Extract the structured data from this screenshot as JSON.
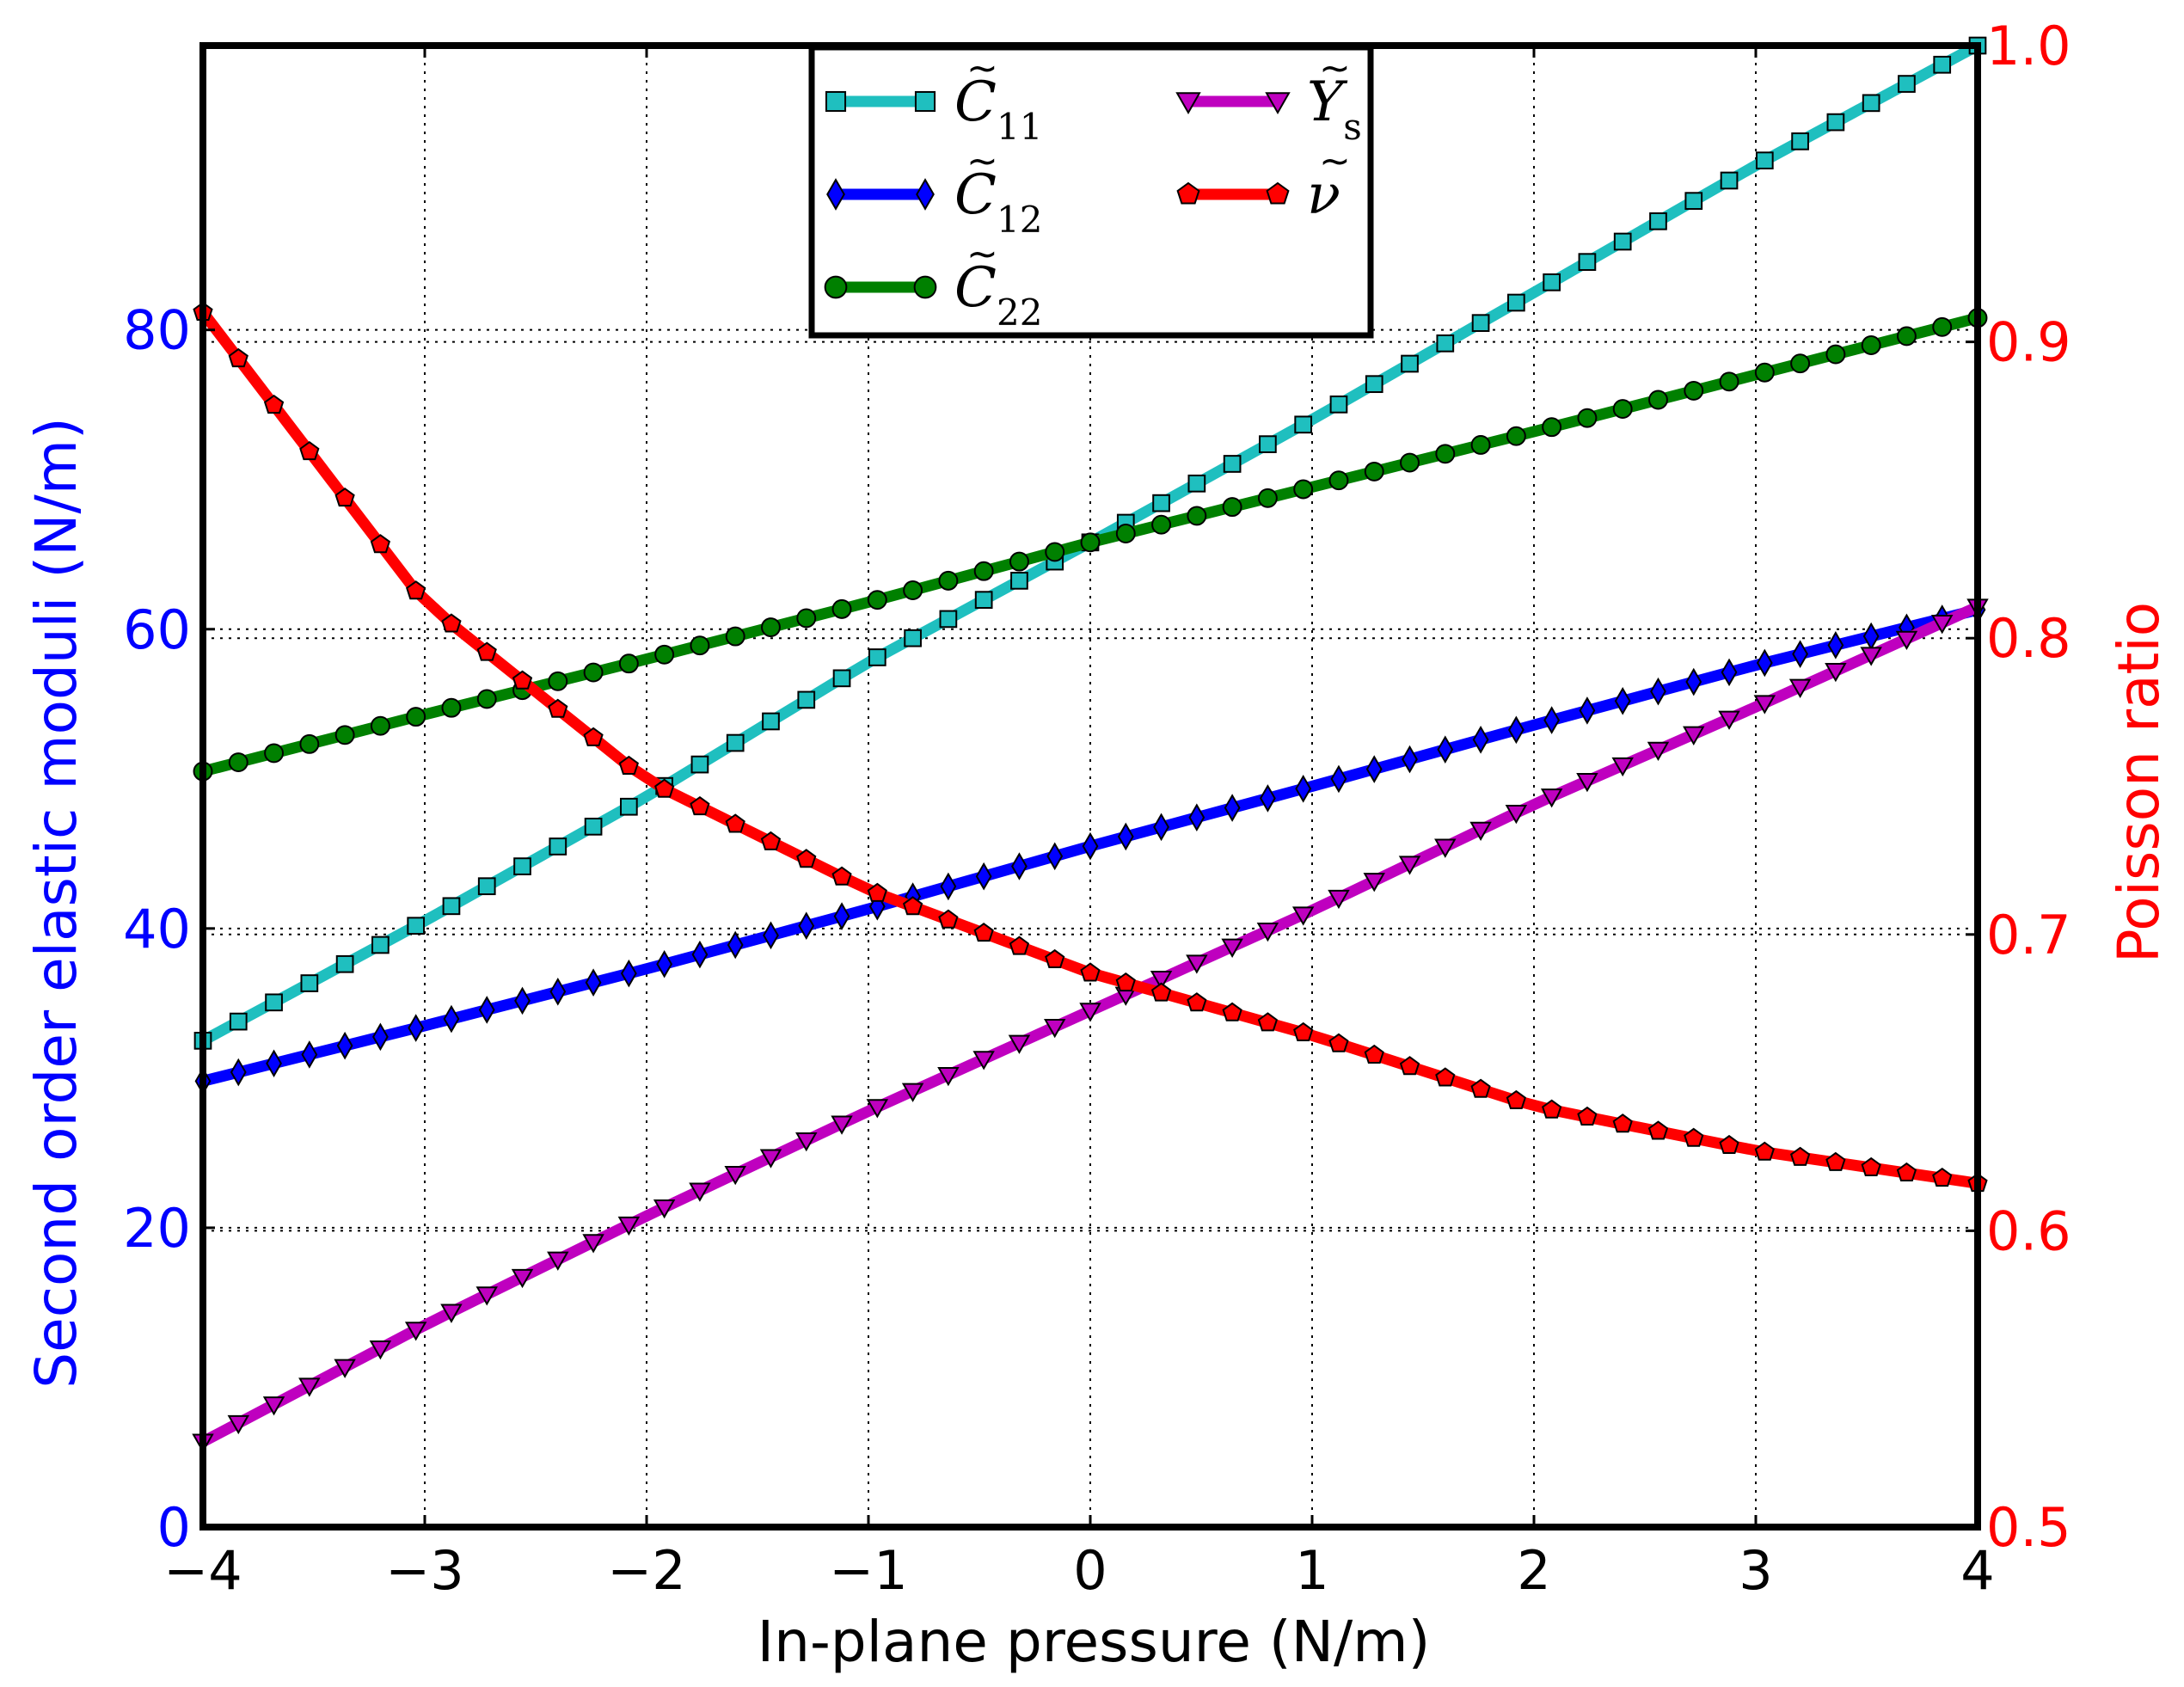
{
  "chart_data": {
    "type": "line",
    "title": "",
    "xlabel": "In-plane pressure (N/m)",
    "ylabel_left": "Second order elastic moduli (N/m)",
    "ylabel_right": "Poisson ratio",
    "xlim": [
      -4,
      4
    ],
    "ylim_left": [
      0,
      99
    ],
    "ylim_right": [
      0.5,
      1.0
    ],
    "grid": true,
    "legend_position": "top-center",
    "x_ticks": [
      -4,
      -3,
      -2,
      -1,
      0,
      1,
      2,
      3,
      4
    ],
    "x_tick_labels": [
      "−4",
      "−3",
      "−2",
      "−1",
      "0",
      "1",
      "2",
      "3",
      "4"
    ],
    "y_left_ticks": [
      0,
      20,
      40,
      60,
      80
    ],
    "y_left_tick_labels": [
      "0",
      "20",
      "40",
      "60",
      "80"
    ],
    "y_right_ticks": [
      0.5,
      0.6,
      0.7,
      0.8,
      0.9,
      1.0
    ],
    "y_right_tick_labels": [
      "0.5",
      "0.6",
      "0.7",
      "0.8",
      "0.9",
      "1.0"
    ],
    "x": [
      -4,
      -3,
      -2,
      -1,
      0,
      1,
      2,
      3,
      4
    ],
    "series": [
      {
        "name": "C11",
        "legend_base": "C",
        "legend_sub": "11",
        "axis": "left",
        "color": "#1fbfbf",
        "marker": "square",
        "values": [
          32.5,
          40.5,
          48.8,
          57.8,
          65.8,
          74.0,
          82.5,
          91.0,
          99.0
        ]
      },
      {
        "name": "C12",
        "legend_base": "C",
        "legend_sub": "12",
        "axis": "left",
        "color": "#0000ff",
        "marker": "thin-diamond",
        "values": [
          29.8,
          33.5,
          37.3,
          41.3,
          45.5,
          49.5,
          53.6,
          57.6,
          61.3
        ]
      },
      {
        "name": "C22",
        "legend_base": "C",
        "legend_sub": "22",
        "axis": "left",
        "color": "#008000",
        "marker": "circle",
        "values": [
          50.5,
          54.3,
          58.0,
          61.8,
          65.8,
          69.5,
          73.2,
          77.0,
          80.8
        ]
      },
      {
        "name": "Ys",
        "legend_base": "Y",
        "legend_sub": "s",
        "axis": "left",
        "color": "#bf00bf",
        "marker": "triangle-down",
        "values": [
          5.7,
          13.5,
          20.8,
          27.8,
          34.5,
          41.2,
          48.3,
          54.8,
          61.5
        ]
      },
      {
        "name": "nu",
        "legend_base": "ν",
        "legend_sub": "",
        "axis": "right",
        "color": "#ff0000",
        "marker": "pentagon",
        "values": [
          0.91,
          0.812,
          0.752,
          0.715,
          0.687,
          0.666,
          0.642,
          0.627,
          0.616
        ]
      }
    ]
  }
}
